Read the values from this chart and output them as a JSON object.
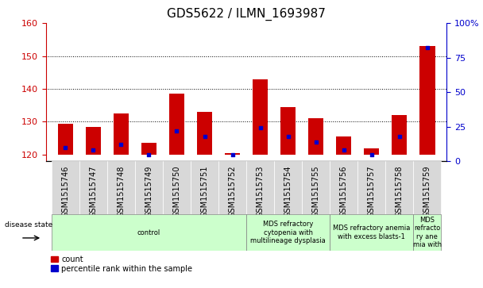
{
  "title": "GDS5622 / ILMN_1693987",
  "samples": [
    "GSM1515746",
    "GSM1515747",
    "GSM1515748",
    "GSM1515749",
    "GSM1515750",
    "GSM1515751",
    "GSM1515752",
    "GSM1515753",
    "GSM1515754",
    "GSM1515755",
    "GSM1515756",
    "GSM1515757",
    "GSM1515758",
    "GSM1515759"
  ],
  "counts": [
    129.5,
    128.5,
    132.5,
    123.5,
    138.5,
    133.0,
    120.5,
    143.0,
    134.5,
    131.0,
    125.5,
    122.0,
    132.0,
    153.0
  ],
  "percentiles": [
    10,
    8,
    12,
    5,
    22,
    18,
    5,
    24,
    18,
    14,
    8,
    5,
    18,
    82
  ],
  "ylim_left": [
    118,
    160
  ],
  "ylim_right": [
    0,
    100
  ],
  "yticks_left": [
    120,
    130,
    140,
    150,
    160
  ],
  "yticks_right": [
    0,
    25,
    50,
    75,
    100
  ],
  "bar_bottom": 120,
  "bar_color": "#cc0000",
  "percentile_color": "#0000cc",
  "background_color": "#ffffff",
  "tick_bg_color": "#d8d8d8",
  "disease_bg_color": "#ccffcc",
  "disease_groups": [
    {
      "label": "control",
      "start": 0,
      "end": 7
    },
    {
      "label": "MDS refractory\ncytopenia with\nmultilineage dysplasia",
      "start": 7,
      "end": 10
    },
    {
      "label": "MDS refractory anemia\nwith excess blasts-1",
      "start": 10,
      "end": 13
    },
    {
      "label": "MDS\nrefracto\nry ane\nmia with",
      "start": 13,
      "end": 14
    }
  ],
  "grid_yticks": [
    130,
    140,
    150
  ],
  "title_fontsize": 11,
  "tick_fontsize": 7,
  "axis_fontsize": 8,
  "legend_fontsize": 7,
  "disease_fontsize": 6
}
